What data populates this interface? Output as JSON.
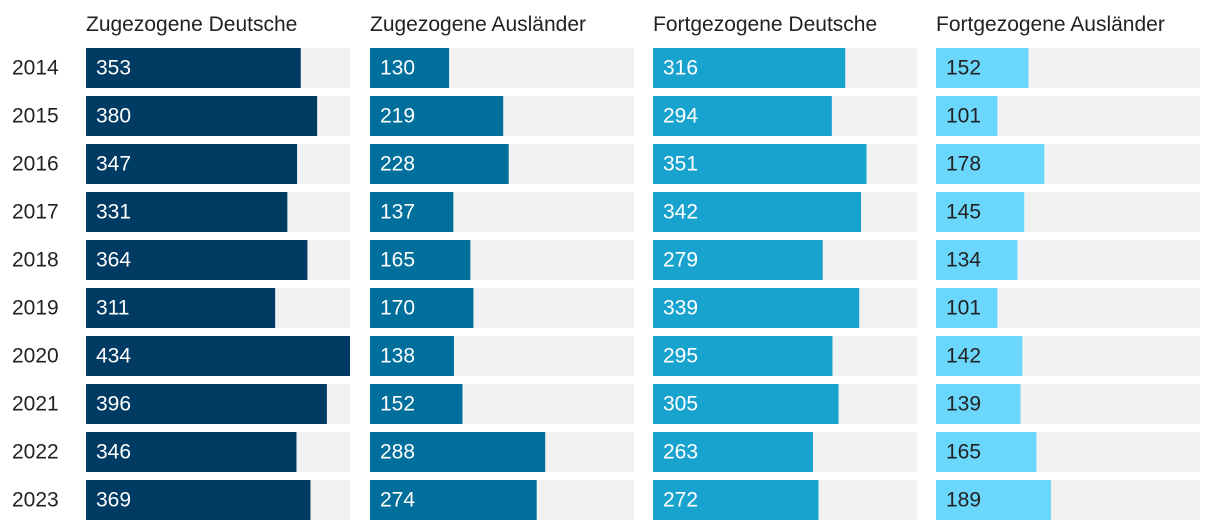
{
  "chart_data": {
    "type": "bar",
    "title": "",
    "categories": [
      "2014",
      "2015",
      "2016",
      "2017",
      "2018",
      "2019",
      "2020",
      "2021",
      "2022",
      "2023"
    ],
    "xlim": [
      0,
      434
    ],
    "series": [
      {
        "name": "Zugezogene Deutsche",
        "color": "#003b63",
        "label_color": "#ffffff",
        "values": [
          353,
          380,
          347,
          331,
          364,
          311,
          434,
          396,
          346,
          369
        ]
      },
      {
        "name": "Zugezogene Ausländer",
        "color": "#006f9b",
        "label_color": "#ffffff",
        "values": [
          130,
          219,
          228,
          137,
          165,
          170,
          138,
          152,
          288,
          274
        ]
      },
      {
        "name": "Fortgezogene Deutsche",
        "color": "#18a3cf",
        "label_color": "#ffffff",
        "values": [
          316,
          294,
          351,
          342,
          279,
          339,
          295,
          305,
          263,
          272
        ]
      },
      {
        "name": "Fortgezogene Ausländer",
        "color": "#6bd7fd",
        "label_color": "#222222",
        "values": [
          152,
          101,
          178,
          145,
          134,
          101,
          142,
          139,
          165,
          189
        ]
      }
    ],
    "track_color": "#f2f2f2"
  }
}
